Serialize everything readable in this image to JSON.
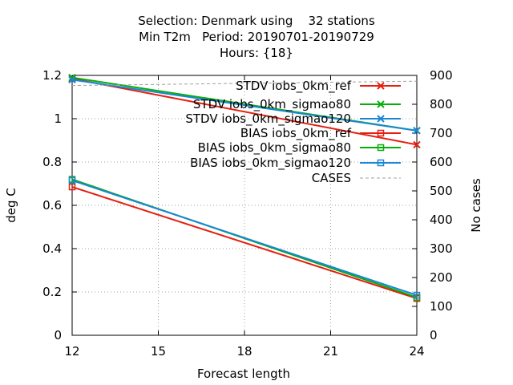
{
  "title": {
    "line1": "Selection: Denmark using    32 stations",
    "line2": "Min T2m   Period: 20190701-20190729",
    "line3": "Hours: {18}"
  },
  "chart_data": {
    "type": "line",
    "xlabel": "Forecast length",
    "ylabel": "deg C",
    "y2label": "No cases",
    "x": [
      12,
      24
    ],
    "xlim": [
      12,
      24
    ],
    "ylim": [
      0,
      1.2
    ],
    "y2lim": [
      0,
      900
    ],
    "xticks": [
      "12",
      "15",
      "18",
      "21",
      "24"
    ],
    "yticks": [
      "0",
      "0.2",
      "0.4",
      "0.6",
      "0.8",
      "1",
      "1.2"
    ],
    "y2ticks": [
      "0",
      "100",
      "200",
      "300",
      "400",
      "500",
      "600",
      "700",
      "800",
      "900"
    ],
    "grid": true,
    "legend_position": "top-right",
    "series": [
      {
        "name": "STDV iobs_0km_ref",
        "values": [
          1.185,
          0.88
        ],
        "color": "#e51e10",
        "marker": "x",
        "axis": "left"
      },
      {
        "name": "STDV iobs_0km_sigmao80",
        "values": [
          1.19,
          0.945
        ],
        "color": "#08ae08",
        "marker": "x",
        "axis": "left"
      },
      {
        "name": "STDV iobs_0km_sigmao120",
        "values": [
          1.18,
          0.945
        ],
        "color": "#1a86d8",
        "marker": "x",
        "axis": "left"
      },
      {
        "name": "BIAS iobs_0km_ref",
        "values": [
          0.685,
          0.17
        ],
        "color": "#e51e10",
        "marker": "square",
        "axis": "left"
      },
      {
        "name": "BIAS iobs_0km_sigmao80",
        "values": [
          0.72,
          0.175
        ],
        "color": "#08ae08",
        "marker": "square",
        "axis": "left"
      },
      {
        "name": "BIAS iobs_0km_sigmao120",
        "values": [
          0.715,
          0.185
        ],
        "color": "#1a86d8",
        "marker": "square",
        "axis": "left"
      },
      {
        "name": "CASES",
        "values": [
          865,
          880
        ],
        "color": "#a0a0a0",
        "dash": true,
        "axis": "right"
      }
    ]
  }
}
